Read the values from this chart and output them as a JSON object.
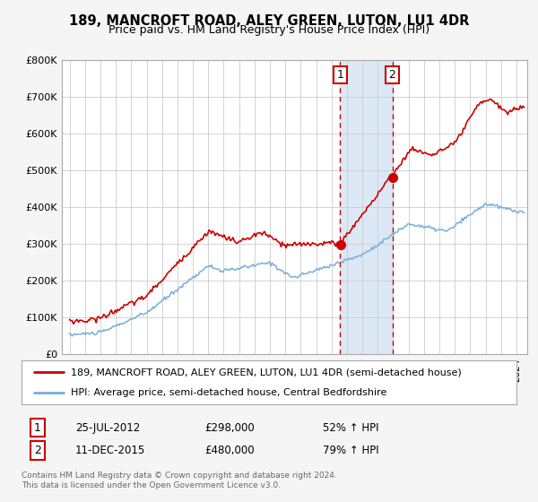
{
  "title": "189, MANCROFT ROAD, ALEY GREEN, LUTON, LU1 4DR",
  "subtitle": "Price paid vs. HM Land Registry's House Price Index (HPI)",
  "legend_line1": "189, MANCROFT ROAD, ALEY GREEN, LUTON, LU1 4DR (semi-detached house)",
  "legend_line2": "HPI: Average price, semi-detached house, Central Bedfordshire",
  "transaction1_date": "25-JUL-2012",
  "transaction1_price": 298000,
  "transaction1_pct": "52% ↑ HPI",
  "transaction2_date": "11-DEC-2015",
  "transaction2_price": 480000,
  "transaction2_pct": "79% ↑ HPI",
  "footer": "Contains HM Land Registry data © Crown copyright and database right 2024.\nThis data is licensed under the Open Government Licence v3.0.",
  "red_line_color": "#cc0000",
  "blue_line_color": "#7aaddb",
  "background_color": "#f5f5f5",
  "plot_bg_color": "#ffffff",
  "shade_color": "#dce8f5",
  "ylim": [
    0,
    800000
  ],
  "yticks": [
    0,
    100000,
    200000,
    300000,
    400000,
    500000,
    600000,
    700000,
    800000
  ],
  "ytick_labels": [
    "£0",
    "£100K",
    "£200K",
    "£300K",
    "£400K",
    "£500K",
    "£600K",
    "£700K",
    "£800K"
  ]
}
